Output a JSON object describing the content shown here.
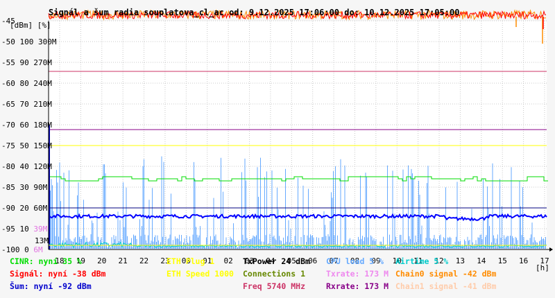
{
  "chart_data": {
    "type": "line",
    "title": "Signál a šum radia souplatova_cl_ac od: 9.12.2025 17:06:00 do: 10.12.2025 17:05:00",
    "left_axis_units": "[dBm] [%]",
    "x_unit": "[h]",
    "x_ticks": [
      "18",
      "19",
      "20",
      "21",
      "22",
      "23",
      "00",
      "01",
      "02",
      "03",
      "04",
      "05",
      "06",
      "07",
      "08",
      "09",
      "10",
      "11",
      "12",
      "13",
      "14",
      "15",
      "16",
      "17"
    ],
    "y_ticks": [
      {
        "dbm": "-45",
        "pct": "",
        "rate": ""
      },
      {
        "dbm": "-50",
        "pct": "100",
        "rate": "300M"
      },
      {
        "dbm": "-55",
        "pct": "90",
        "rate": "270M"
      },
      {
        "dbm": "-60",
        "pct": "80",
        "rate": "240M"
      },
      {
        "dbm": "-65",
        "pct": "70",
        "rate": "210M"
      },
      {
        "dbm": "-70",
        "pct": "60",
        "rate": "180M"
      },
      {
        "dbm": "-75",
        "pct": "50",
        "rate": "150M"
      },
      {
        "dbm": "-80",
        "pct": "40",
        "rate": "120M"
      },
      {
        "dbm": "-85",
        "pct": "30",
        "rate": "90M"
      },
      {
        "dbm": "-90",
        "pct": "20",
        "rate": "60M"
      },
      {
        "dbm": "-95",
        "pct": "10",
        "rate": "39M",
        "rate_color": "#e070e0"
      },
      {
        "dbm": "-100",
        "pct": "0",
        "rate": "6M",
        "rate_color": "#e070e0"
      }
    ],
    "extra_label": {
      "text": "13M",
      "color": "#e070e0"
    },
    "ylim_dbm": [
      -100,
      -45
    ],
    "series": [
      {
        "key": "signal",
        "color": "#ff0000",
        "approx_value_dbm": -44
      },
      {
        "key": "chain0",
        "color": "#ff8c00",
        "approx_value_dbm": -44
      },
      {
        "key": "noise",
        "color": "#0000ff",
        "approx_value_dbm": -92
      },
      {
        "key": "cinr",
        "color": "#00dd00",
        "approx_value_pct": 35
      },
      {
        "key": "cpu",
        "color": "#66aaff",
        "approx_value_pct": 5
      },
      {
        "key": "airtime",
        "color": "#00cccc",
        "approx_value_pct": 1
      },
      {
        "key": "eth_plug",
        "color": "#ffff00",
        "approx_value_pct": 2
      },
      {
        "key": "txrate",
        "color": "#880088",
        "approx_value_mbps": 173
      },
      {
        "key": "rxrate",
        "color": "#cc3366",
        "approx_value_mbps": 257
      },
      {
        "key": "ref_dark",
        "color": "#000080",
        "approx_value_mbps": 60
      },
      {
        "key": "ref_yellow",
        "color": "#ffff00",
        "approx_value_mbps": 150
      }
    ]
  },
  "legend": [
    {
      "key": "cinr",
      "text": "CINR: nyní 35 %",
      "color": "#00dd00",
      "col": 0,
      "row": 0
    },
    {
      "key": "signal",
      "text": "Signál: nyní -38 dBm",
      "color": "#ff0000",
      "col": 0,
      "row": 1
    },
    {
      "key": "noise",
      "text": "Šum: nyní -92 dBm",
      "color": "#0000cc",
      "col": 0,
      "row": 2
    },
    {
      "key": "ethplug",
      "text": "ETH Plug 1",
      "color": "#ffff00",
      "col": 1,
      "row": 0
    },
    {
      "key": "ethspeed",
      "text": "ETH Speed 1000",
      "color": "#ffff00",
      "col": 1,
      "row": 1
    },
    {
      "key": "txpower",
      "text": "TxPower 24 dBm",
      "color": "#000000",
      "col": 2,
      "row": 0
    },
    {
      "key": "conn",
      "text": "Connections 1",
      "color": "#668800",
      "col": 2,
      "row": 1
    },
    {
      "key": "freq",
      "text": "Freq 5740 MHz",
      "color": "#cc3366",
      "col": 2,
      "row": 2
    },
    {
      "key": "cpu",
      "text": "CPU load 5 %",
      "color": "#66aaff",
      "col": 3,
      "row": 0
    },
    {
      "key": "txrate",
      "text": "Txrate: 173 M",
      "color": "#ee88ee",
      "col": 3,
      "row": 1
    },
    {
      "key": "rxrate",
      "text": "Rxrate: 173 M",
      "color": "#880088",
      "col": 3,
      "row": 2
    },
    {
      "key": "airtime",
      "text": "Airtime 5 %",
      "color": "#00cccc",
      "col": 4,
      "row": 0
    },
    {
      "key": "chain0",
      "text": "Chain0 signal -42 dBm",
      "color": "#ff8c00",
      "col": 4,
      "row": 1
    },
    {
      "key": "chain1",
      "text": "Chain1 signal -41 dBm",
      "color": "#ffccaa",
      "col": 4,
      "row": 2
    }
  ]
}
